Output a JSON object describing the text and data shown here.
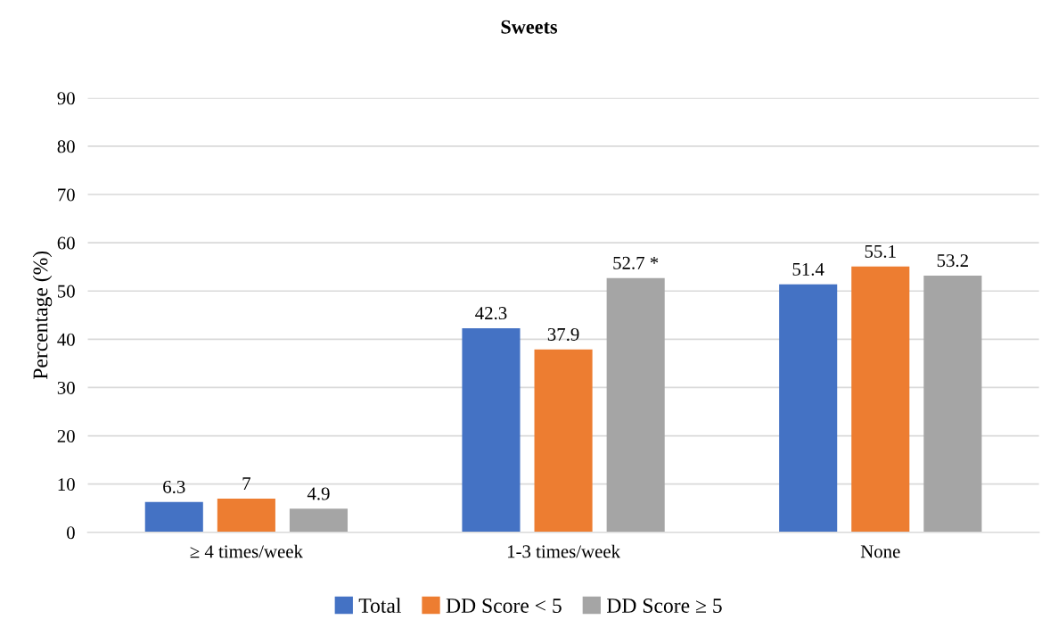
{
  "chart_data": {
    "type": "bar",
    "title": "Sweets",
    "ylabel": "Percentage (%)",
    "categories": [
      "≥ 4 times/week",
      "1-3 times/week",
      "None"
    ],
    "series": [
      {
        "name": "Total",
        "color": "#4472c4",
        "values": [
          6.3,
          42.3,
          51.4
        ],
        "value_labels": [
          "6.3",
          "42.3",
          "51.4"
        ]
      },
      {
        "name": "DD Score < 5",
        "color": "#ed7d31",
        "values": [
          7,
          37.9,
          55.1
        ],
        "value_labels": [
          "7",
          "37.9",
          "55.1"
        ]
      },
      {
        "name": "DD Score ≥ 5",
        "color": "#a5a5a5",
        "values": [
          4.9,
          52.7,
          53.2
        ],
        "value_labels": [
          "4.9",
          "52.7 *",
          "53.2"
        ]
      }
    ],
    "ylim": [
      0,
      90
    ],
    "yticks": [
      0,
      10,
      20,
      30,
      40,
      50,
      60,
      70,
      80,
      90
    ],
    "grid": "y",
    "legend": "bottom"
  }
}
